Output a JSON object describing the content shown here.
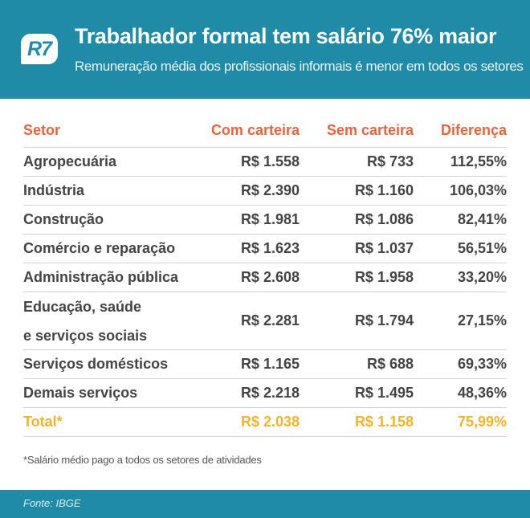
{
  "header": {
    "logo": "R7",
    "title": "Trabalhador formal tem salário 76% maior",
    "subtitle": "Remuneração média dos profissionais informais é menor em todos os setores"
  },
  "table": {
    "columns": [
      "Setor",
      "Com carteira",
      "Sem carteira",
      "Diferença"
    ],
    "rows": [
      {
        "setor": "Agropecuária",
        "com": "R$ 1.558",
        "sem": "R$ 733",
        "dif": "112,55%"
      },
      {
        "setor": "Indústria",
        "com": "R$ 2.390",
        "sem": "R$ 1.160",
        "dif": "106,03%"
      },
      {
        "setor": "Construção",
        "com": "R$ 1.981",
        "sem": "R$ 1.086",
        "dif": "82,41%"
      },
      {
        "setor": "Comércio e reparação",
        "com": "R$ 1.623",
        "sem": "R$ 1.037",
        "dif": "56,51%"
      },
      {
        "setor": "Administração pública",
        "com": "R$ 2.608",
        "sem": "R$ 1.958",
        "dif": "33,20%"
      },
      {
        "setor_line1": "Educação, saúde",
        "setor_line2": "e serviços sociais",
        "com": "R$ 2.281",
        "sem": "R$ 1.794",
        "dif": "27,15%"
      },
      {
        "setor": "Serviços domésticos",
        "com": "R$ 1.165",
        "sem": "R$ 688",
        "dif": "69,33%"
      },
      {
        "setor": "Demais serviços",
        "com": "R$ 2.218",
        "sem": "R$ 1.495",
        "dif": "48,36%"
      }
    ],
    "total": {
      "setor": "Total*",
      "com": "R$ 2.038",
      "sem": "R$ 1.158",
      "dif": "75,99%"
    }
  },
  "note": "*Salário médio pago a todos os setores de atividades",
  "footer": {
    "source": "Fonte: IBGE"
  },
  "colors": {
    "brand": "#1f8ba6",
    "header_text": "#e8643a",
    "total_text": "#f2b428",
    "body_text": "#444444"
  }
}
